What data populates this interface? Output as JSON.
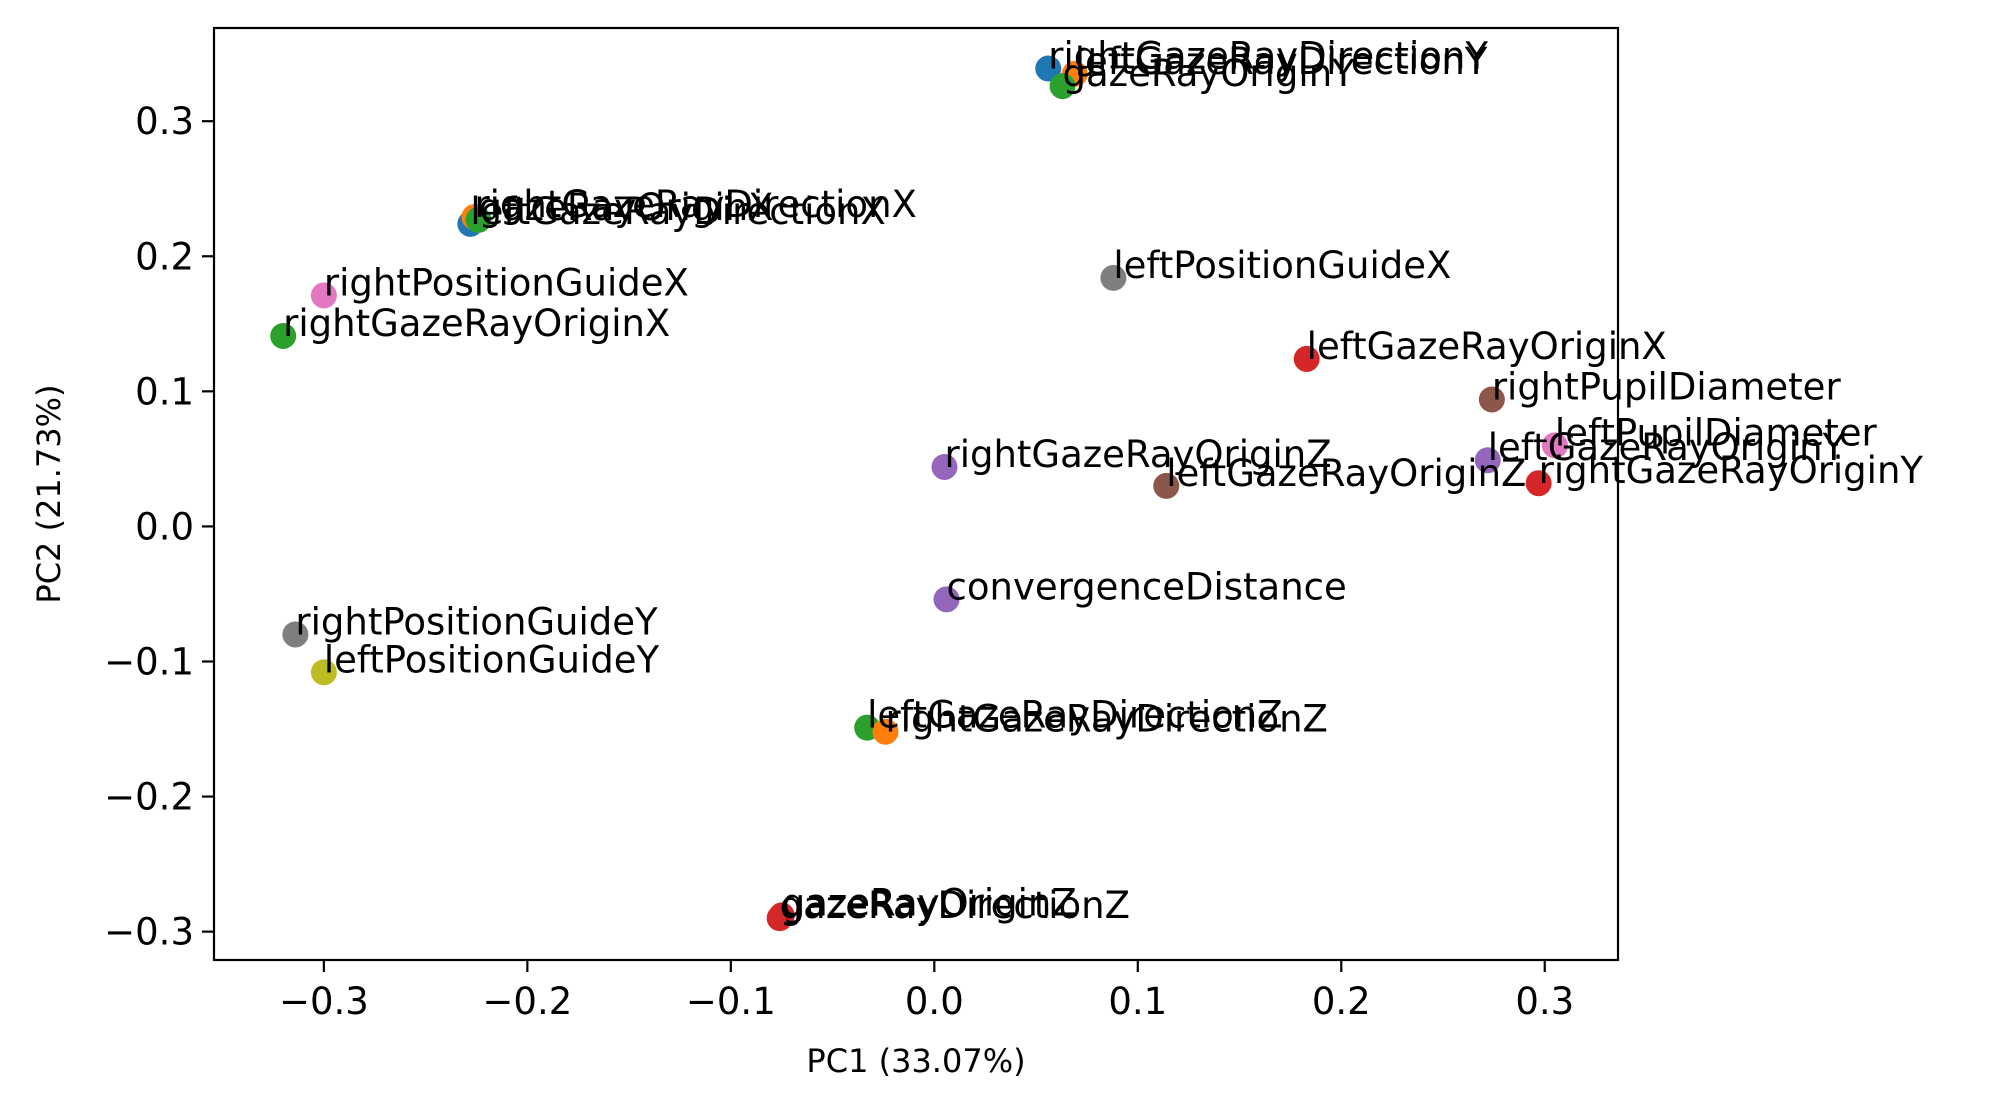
{
  "chart_data": {
    "type": "scatter",
    "title": "",
    "xlabel": "PC1 (33.07%)",
    "ylabel": "PC2 (21.73%)",
    "xlim": [
      -0.354,
      0.336
    ],
    "ylim": [
      -0.321,
      0.369
    ],
    "xticks": [
      -0.3,
      -0.2,
      -0.1,
      0.0,
      0.1,
      0.2,
      0.3
    ],
    "yticks": [
      -0.3,
      -0.2,
      -0.1,
      0.0,
      0.1,
      0.2,
      0.3
    ],
    "xtick_labels": [
      "−0.3",
      "−0.2",
      "−0.1",
      "0.0",
      "0.1",
      "0.2",
      "0.3"
    ],
    "ytick_labels": [
      "−0.3",
      "−0.2",
      "−0.1",
      "0.0",
      "0.1",
      "0.2",
      "0.3"
    ],
    "grid": false,
    "legend": "none",
    "points": [
      {
        "label": "rightGazeRayDirectionY",
        "x": 0.056,
        "y": 0.339,
        "color": "#1f77b4"
      },
      {
        "label": "leftGazeRayDirectionY",
        "x": 0.069,
        "y": 0.335,
        "color": "#ff7f0e"
      },
      {
        "label": "gazeRayOriginY",
        "x": 0.063,
        "y": 0.326,
        "color": "#2ca02c"
      },
      {
        "label": "leftGazeRayDirectionX",
        "x": -0.228,
        "y": 0.224,
        "color": "#1f77b4"
      },
      {
        "label": "rightGazeRayDirectionX",
        "x": -0.226,
        "y": 0.229,
        "color": "#ff7f0e"
      },
      {
        "label": "gazeRayOriginX",
        "x": -0.224,
        "y": 0.227,
        "color": "#2ca02c"
      },
      {
        "label": "rightPositionGuideX",
        "x": -0.3,
        "y": 0.171,
        "color": "#e377c2"
      },
      {
        "label": "rightGazeRayOriginX",
        "x": -0.32,
        "y": 0.141,
        "color": "#2ca02c"
      },
      {
        "label": "leftPositionGuideX",
        "x": 0.088,
        "y": 0.184,
        "color": "#7f7f7f"
      },
      {
        "label": "leftGazeRayOriginX",
        "x": 0.183,
        "y": 0.124,
        "color": "#d62728"
      },
      {
        "label": "rightPupilDiameter",
        "x": 0.274,
        "y": 0.094,
        "color": "#8c564b"
      },
      {
        "label": "leftPupilDiameter",
        "x": 0.305,
        "y": 0.06,
        "color": "#e377c2"
      },
      {
        "label": "leftGazeRayOriginY",
        "x": 0.272,
        "y": 0.049,
        "color": "#9467bd"
      },
      {
        "label": "rightGazeRayOriginY",
        "x": 0.297,
        "y": 0.032,
        "color": "#d62728"
      },
      {
        "label": "rightGazeRayOriginZ",
        "x": 0.005,
        "y": 0.044,
        "color": "#9467bd"
      },
      {
        "label": "leftGazeRayOriginZ",
        "x": 0.114,
        "y": 0.03,
        "color": "#8c564b"
      },
      {
        "label": "convergenceDistance",
        "x": 0.006,
        "y": -0.054,
        "color": "#9467bd"
      },
      {
        "label": "rightPositionGuideY",
        "x": -0.314,
        "y": -0.08,
        "color": "#7f7f7f"
      },
      {
        "label": "leftPositionGuideY",
        "x": -0.3,
        "y": -0.108,
        "color": "#bcbd22"
      },
      {
        "label": "leftGazeRayDirectionZ",
        "x": -0.033,
        "y": -0.149,
        "color": "#2ca02c"
      },
      {
        "label": "rightGazeRayDirectionZ",
        "x": -0.024,
        "y": -0.152,
        "color": "#ff7f0e"
      },
      {
        "label": "gazeRayDirectionZ",
        "x": -0.076,
        "y": -0.29,
        "color": "#d62728"
      },
      {
        "label": "gazeRayOriginZ",
        "x": -0.075,
        "y": -0.288,
        "color": "#d62728"
      }
    ]
  }
}
